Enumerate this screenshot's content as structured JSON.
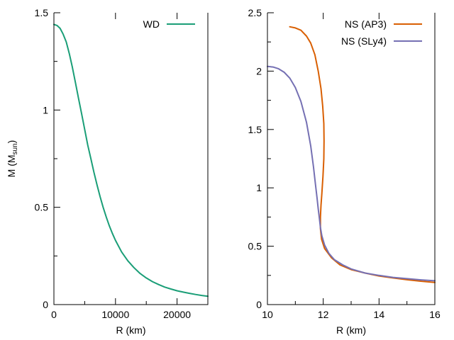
{
  "chart_data": [
    {
      "type": "line",
      "panel": "left",
      "title": "",
      "xlabel": "R (km)",
      "ylabel_main": "M (M",
      "ylabel_sub": "sun",
      "ylabel_close": ")",
      "xlim": [
        0,
        25000
      ],
      "ylim": [
        0,
        1.5
      ],
      "xticks": [
        0,
        10000,
        20000
      ],
      "xtick_labels": [
        "0",
        "10000",
        "20000"
      ],
      "xminor": [
        5000,
        15000,
        25000
      ],
      "yticks": [
        0,
        0.5,
        1,
        1.5
      ],
      "ytick_labels": [
        "0",
        "0.5",
        "1",
        "1.5"
      ],
      "yminor": [
        0.25,
        0.75,
        1.25
      ],
      "legend_position": "top-right",
      "series": [
        {
          "name": "WD",
          "color": "#1a9e77",
          "x": [
            0,
            500,
            1000,
            1500,
            2000,
            2500,
            3000,
            3500,
            4000,
            4500,
            5000,
            5500,
            6000,
            6500,
            7000,
            7500,
            8000,
            8500,
            9000,
            9500,
            10000,
            11000,
            12000,
            13000,
            14000,
            15000,
            16000,
            17000,
            18000,
            19000,
            20000,
            21000,
            22000,
            23000,
            24000,
            25000
          ],
          "y": [
            1.44,
            1.435,
            1.42,
            1.39,
            1.35,
            1.29,
            1.22,
            1.14,
            1.06,
            0.98,
            0.9,
            0.82,
            0.75,
            0.68,
            0.615,
            0.555,
            0.5,
            0.45,
            0.405,
            0.365,
            0.33,
            0.27,
            0.225,
            0.19,
            0.16,
            0.137,
            0.118,
            0.103,
            0.09,
            0.08,
            0.071,
            0.064,
            0.058,
            0.052,
            0.047,
            0.043
          ]
        }
      ]
    },
    {
      "type": "line",
      "panel": "right",
      "title": "",
      "xlabel": "R (km)",
      "xlim": [
        10,
        16
      ],
      "ylim": [
        0,
        2.5
      ],
      "xticks": [
        10,
        12,
        14,
        16
      ],
      "xtick_labels": [
        "10",
        "12",
        "14",
        "16"
      ],
      "xminor": [
        11,
        13,
        15
      ],
      "yticks": [
        0,
        0.5,
        1,
        1.5,
        2,
        2.5
      ],
      "ytick_labels": [
        "0",
        "0.5",
        "1",
        "1.5",
        "2",
        "2.5"
      ],
      "yminor": [
        0.25,
        0.75,
        1.25,
        1.75,
        2.25
      ],
      "legend_position": "top-right",
      "series": [
        {
          "name": "NS (AP3)",
          "color": "#d95f02",
          "x": [
            10.8,
            11.0,
            11.2,
            11.4,
            11.55,
            11.7,
            11.82,
            11.92,
            11.98,
            12.02,
            12.03,
            12.02,
            11.99,
            11.95,
            11.92,
            11.9,
            11.9,
            11.94,
            12.05,
            12.3,
            12.6,
            13.0,
            13.5,
            14.0,
            14.5,
            15.0,
            15.5,
            16.0
          ],
          "y": [
            2.38,
            2.37,
            2.35,
            2.3,
            2.24,
            2.14,
            2.0,
            1.85,
            1.7,
            1.55,
            1.4,
            1.25,
            1.1,
            0.95,
            0.85,
            0.75,
            0.65,
            0.56,
            0.48,
            0.4,
            0.34,
            0.3,
            0.27,
            0.245,
            0.228,
            0.213,
            0.2,
            0.19
          ]
        },
        {
          "name": "NS (SLy4)",
          "color": "#7570b3",
          "x": [
            10.0,
            10.2,
            10.4,
            10.6,
            10.8,
            11.0,
            11.2,
            11.4,
            11.55,
            11.65,
            11.72,
            11.78,
            11.82,
            11.86,
            11.9,
            11.95,
            12.05,
            12.2,
            12.4,
            12.7,
            13.0,
            13.5,
            14.0,
            14.5,
            15.0,
            15.5,
            16.0
          ],
          "y": [
            2.04,
            2.035,
            2.02,
            1.99,
            1.94,
            1.86,
            1.74,
            1.56,
            1.36,
            1.18,
            1.03,
            0.91,
            0.82,
            0.74,
            0.66,
            0.59,
            0.51,
            0.44,
            0.385,
            0.34,
            0.305,
            0.27,
            0.25,
            0.233,
            0.222,
            0.212,
            0.204
          ]
        }
      ]
    }
  ]
}
